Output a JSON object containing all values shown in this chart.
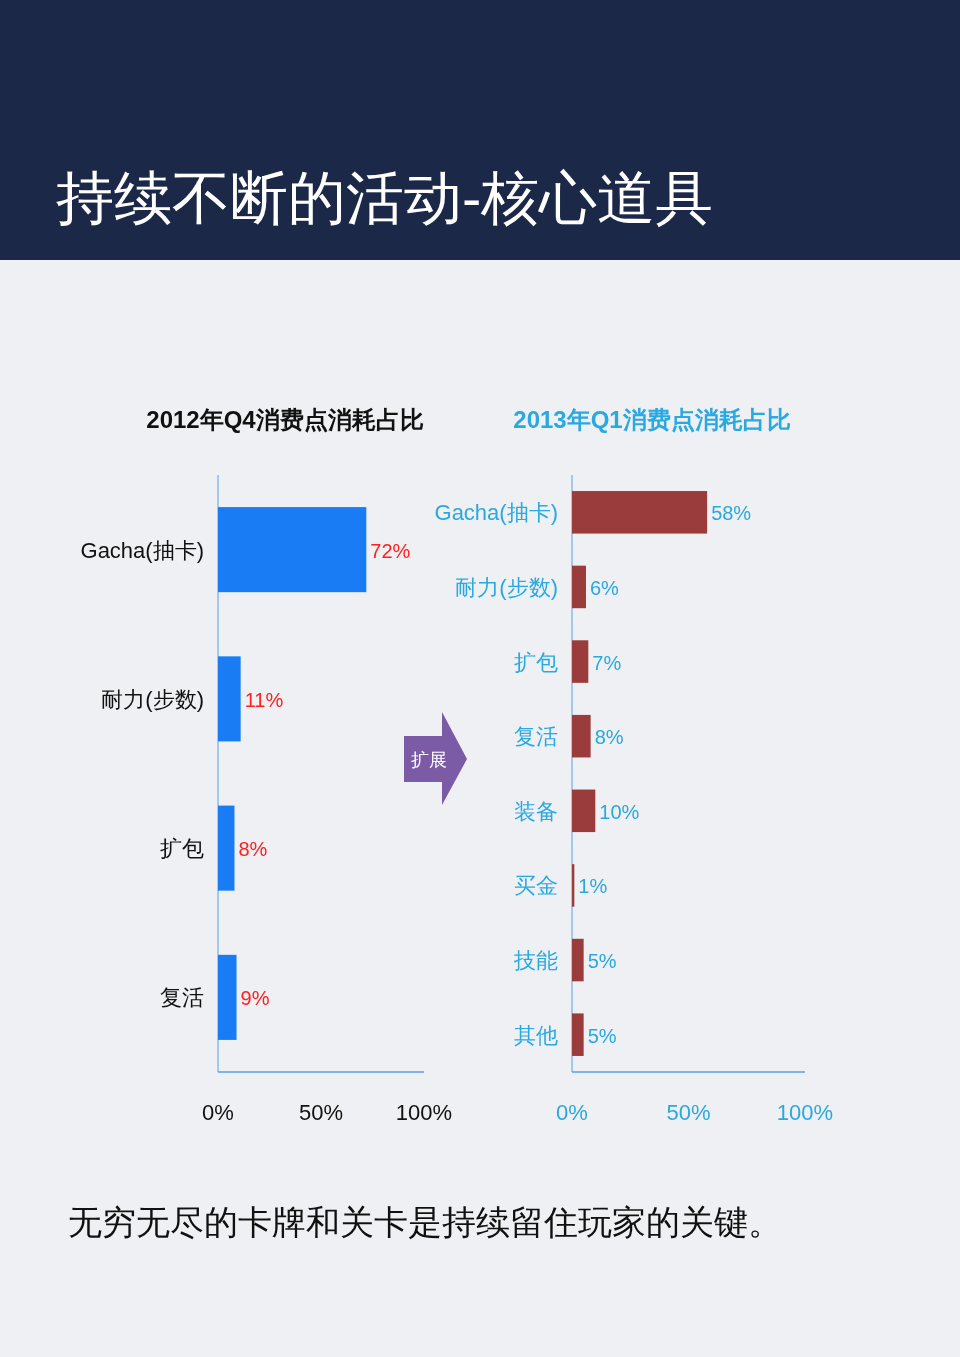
{
  "chart_data": [
    {
      "type": "other",
      "title": "持续不断的活动-核心道具",
      "annotations": [
        "扩展",
        "无穷无尽的卡牌和关卡是持续留住玩家的关键。"
      ]
    },
    {
      "type": "bar",
      "orientation": "horizontal",
      "title": "2012年Q4消费点消耗占比",
      "categories": [
        "Gacha(抽卡)",
        "耐力(步数)",
        "扩包",
        "复活"
      ],
      "values": [
        72,
        11,
        8,
        9
      ],
      "value_labels": [
        "72%",
        "11%",
        "8%",
        "9%"
      ],
      "color": "#1a7cf5",
      "xlim": [
        0,
        100
      ],
      "xticks": [
        {
          "value": 0,
          "label": "0%"
        },
        {
          "value": 50,
          "label": "50%"
        },
        {
          "value": 100,
          "label": "100%"
        }
      ]
    },
    {
      "type": "bar",
      "orientation": "horizontal",
      "title": "2013年Q1消费点消耗占比",
      "categories": [
        "Gacha(抽卡)",
        "耐力(步数)",
        "扩包",
        "复活",
        "装备",
        "买金",
        "技能",
        "其他"
      ],
      "values": [
        58,
        6,
        7,
        8,
        10,
        1,
        5,
        5
      ],
      "value_labels": [
        "58%",
        "6%",
        "7%",
        "8%",
        "10%",
        "1%",
        "5%",
        "5%"
      ],
      "color": "#9a3c3c",
      "xlim": [
        0,
        100
      ],
      "xticks": [
        {
          "value": 0,
          "label": "0%"
        },
        {
          "value": 50,
          "label": "50%"
        },
        {
          "value": 100,
          "label": "100%"
        }
      ]
    }
  ]
}
